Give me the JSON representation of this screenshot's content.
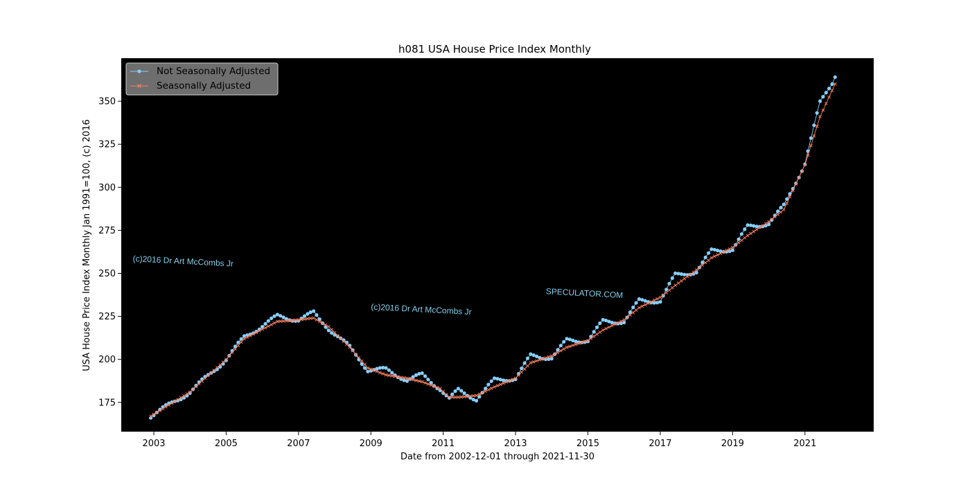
{
  "chart_data": {
    "type": "line",
    "title": "h081 USA House Price Index Monthly",
    "xlabel": "Date from 2002-12-01 through 2021-11-30",
    "ylabel": "USA House Price Index Monthly Jan 1991=100, (c) 2016",
    "x_start": "2002-12",
    "x_end": "2021-11",
    "xlim": [
      2002.1,
      2022.9
    ],
    "ylim": [
      158,
      375
    ],
    "x_ticks": [
      2003,
      2005,
      2007,
      2009,
      2011,
      2013,
      2015,
      2017,
      2019,
      2021
    ],
    "y_ticks": [
      175,
      200,
      225,
      250,
      275,
      300,
      325,
      350
    ],
    "grid": false,
    "legend_position": "top-left",
    "background_color": "#000000",
    "series": [
      {
        "name": "Not Seasonally Adjusted",
        "color": "#87cefa",
        "marker": "circle",
        "anchors": [
          [
            "2002-12",
            167
          ],
          [
            "2004-01",
            181
          ],
          [
            "2005-01",
            200
          ],
          [
            "2005-07",
            213
          ],
          [
            "2006-06",
            225
          ],
          [
            "2007-01",
            223
          ],
          [
            "2007-06",
            227
          ],
          [
            "2007-11",
            218
          ],
          [
            "2008-06",
            207
          ],
          [
            "2008-12",
            194
          ],
          [
            "2009-06",
            194
          ],
          [
            "2010-01",
            188
          ],
          [
            "2010-06",
            191
          ],
          [
            "2010-12",
            183
          ],
          [
            "2011-03",
            177
          ],
          [
            "2011-06",
            182
          ],
          [
            "2011-12",
            177
          ],
          [
            "2012-06",
            188
          ],
          [
            "2013-01",
            189
          ],
          [
            "2013-06",
            202
          ],
          [
            "2014-01",
            201
          ],
          [
            "2014-06",
            211
          ],
          [
            "2015-01",
            211
          ],
          [
            "2015-06",
            222
          ],
          [
            "2016-01",
            222
          ],
          [
            "2016-06",
            234
          ],
          [
            "2017-01",
            234
          ],
          [
            "2017-06",
            249
          ],
          [
            "2018-01",
            251
          ],
          [
            "2018-06",
            263
          ],
          [
            "2019-01",
            264
          ],
          [
            "2019-06",
            277
          ],
          [
            "2020-01",
            279
          ],
          [
            "2020-06",
            289
          ],
          [
            "2021-01",
            314
          ],
          [
            "2021-06",
            349
          ],
          [
            "2021-11",
            364
          ]
        ]
      },
      {
        "name": "Seasonally Adjusted",
        "color": "#fa8060",
        "marker": "x",
        "anchors": [
          [
            "2002-12",
            167
          ],
          [
            "2004-01",
            181
          ],
          [
            "2005-01",
            200
          ],
          [
            "2005-07",
            212
          ],
          [
            "2006-06",
            222
          ],
          [
            "2007-01",
            223
          ],
          [
            "2007-06",
            224
          ],
          [
            "2007-11",
            219
          ],
          [
            "2008-06",
            207
          ],
          [
            "2008-12",
            195
          ],
          [
            "2009-06",
            191
          ],
          [
            "2010-01",
            189
          ],
          [
            "2010-06",
            187
          ],
          [
            "2010-12",
            183
          ],
          [
            "2011-03",
            178
          ],
          [
            "2011-06",
            178
          ],
          [
            "2011-12",
            179
          ],
          [
            "2012-06",
            184
          ],
          [
            "2013-01",
            189
          ],
          [
            "2013-06",
            198
          ],
          [
            "2014-01",
            202
          ],
          [
            "2014-06",
            207
          ],
          [
            "2015-01",
            211
          ],
          [
            "2015-06",
            217
          ],
          [
            "2016-01",
            223
          ],
          [
            "2016-06",
            230
          ],
          [
            "2017-01",
            236
          ],
          [
            "2017-06",
            243
          ],
          [
            "2018-01",
            252
          ],
          [
            "2018-06",
            259
          ],
          [
            "2019-01",
            265
          ],
          [
            "2019-06",
            272
          ],
          [
            "2020-01",
            280
          ],
          [
            "2020-06",
            287
          ],
          [
            "2021-01",
            313
          ],
          [
            "2021-06",
            341
          ],
          [
            "2021-11",
            360
          ]
        ]
      }
    ],
    "annotations": [
      {
        "text": "(c)2016 Dr Art McCombs Jr",
        "at": [
          "2002-06",
          257
        ]
      },
      {
        "text": "(c)2016 Dr Art McCombs Jr",
        "at": [
          "2009-01",
          229
        ]
      },
      {
        "text": "SPECULATOR.COM",
        "at": [
          "2013-11",
          238
        ]
      }
    ]
  }
}
